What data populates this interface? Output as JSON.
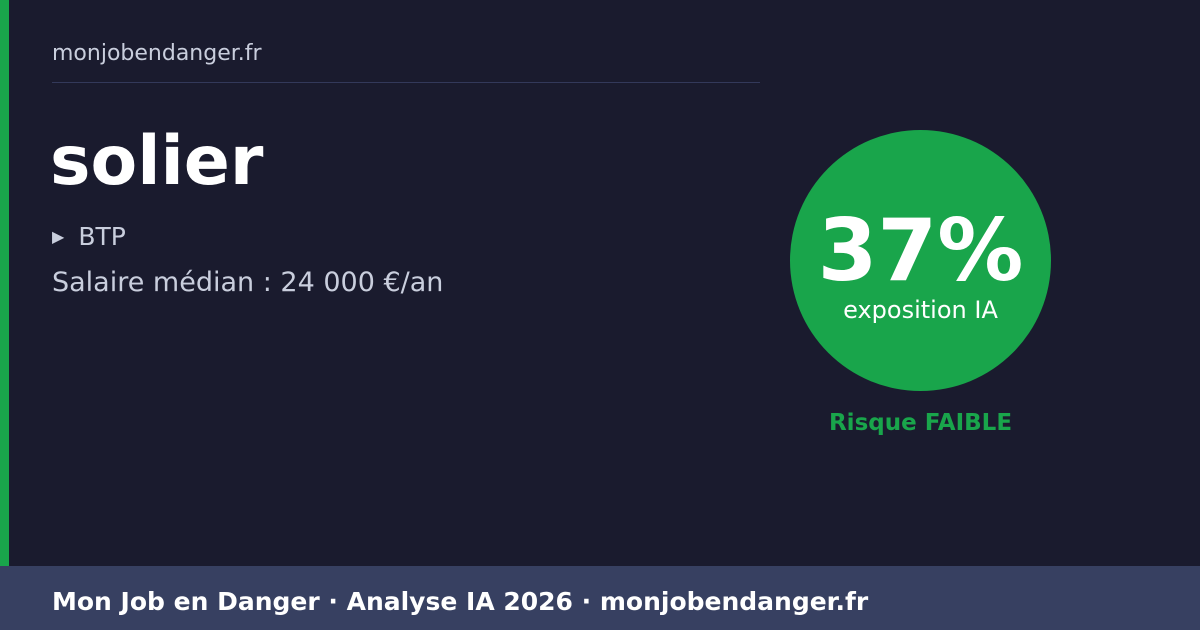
{
  "site": "monjobendanger.fr",
  "job": {
    "title": "solier",
    "sector_icon": "triangle-right-icon",
    "sector": "BTP",
    "salary": "Salaire médian : 24 000 €/an"
  },
  "score": {
    "percent": "37%",
    "label": "exposition IA",
    "risk": "Risque FAIBLE",
    "color": "#19a54b"
  },
  "footer": {
    "text": "Mon Job en Danger · Analyse IA 2026 · monjobendanger.fr"
  }
}
